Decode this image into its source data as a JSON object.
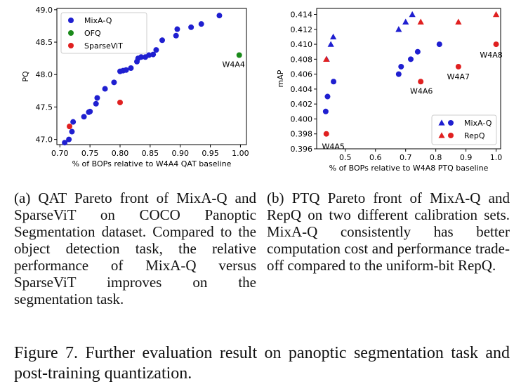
{
  "chart_data": [
    {
      "type": "scatter",
      "title": "",
      "xlabel": "% of BOPs relative to W4A4 QAT baseline",
      "ylabel": "PQ",
      "xlim": [
        0.695,
        1.01
      ],
      "ylim": [
        46.92,
        49.02
      ],
      "xticks": [
        "0.70",
        "0.75",
        "0.80",
        "0.85",
        "0.90",
        "0.95",
        "1.00"
      ],
      "xtick_values": [
        0.7,
        0.75,
        0.8,
        0.85,
        0.9,
        0.95,
        1.0
      ],
      "yticks": [
        "47.0",
        "47.5",
        "48.0",
        "48.5",
        "49.0"
      ],
      "ytick_values": [
        47.0,
        47.5,
        48.0,
        48.5,
        49.0
      ],
      "legend": {
        "placement": "top-left",
        "entries": [
          "MixA-Q",
          "OFQ",
          "SparseViT"
        ]
      },
      "series": [
        {
          "name": "MixA-Q",
          "color": "#1f1fd0",
          "marker": "circle",
          "points": [
            [
              0.708,
              46.95
            ],
            [
              0.715,
              47.0
            ],
            [
              0.72,
              47.12
            ],
            [
              0.722,
              47.27
            ],
            [
              0.74,
              47.35
            ],
            [
              0.748,
              47.42
            ],
            [
              0.75,
              47.43
            ],
            [
              0.76,
              47.55
            ],
            [
              0.762,
              47.64
            ],
            [
              0.775,
              47.78
            ],
            [
              0.79,
              47.88
            ],
            [
              0.8,
              48.05
            ],
            [
              0.805,
              48.06
            ],
            [
              0.81,
              48.07
            ],
            [
              0.818,
              48.1
            ],
            [
              0.828,
              48.2
            ],
            [
              0.83,
              48.25
            ],
            [
              0.835,
              48.27
            ],
            [
              0.842,
              48.27
            ],
            [
              0.848,
              48.3
            ],
            [
              0.855,
              48.31
            ],
            [
              0.86,
              48.38
            ],
            [
              0.87,
              48.53
            ],
            [
              0.893,
              48.6
            ],
            [
              0.895,
              48.7
            ],
            [
              0.918,
              48.73
            ],
            [
              0.935,
              48.78
            ],
            [
              0.965,
              48.91
            ]
          ]
        },
        {
          "name": "OFQ",
          "color": "#1a8a1a",
          "marker": "circle",
          "points": [
            [
              0.998,
              48.3
            ]
          ]
        },
        {
          "name": "SparseViT",
          "color": "#e02020",
          "marker": "circle",
          "points": [
            [
              0.716,
              47.2
            ],
            [
              0.8,
              47.57
            ]
          ]
        }
      ],
      "annotations": [
        {
          "text": "W4A4",
          "x": 0.998,
          "y": 48.3
        }
      ]
    },
    {
      "type": "scatter",
      "title": "",
      "xlabel": "% of BOPs relative to W4A8 PTQ baseline",
      "ylabel": "mAP",
      "xlim": [
        0.405,
        1.015
      ],
      "ylim": [
        0.396,
        0.4148
      ],
      "xticks": [
        "0.5",
        "0.6",
        "0.7",
        "0.8",
        "0.9",
        "1.0"
      ],
      "xtick_values": [
        0.5,
        0.6,
        0.7,
        0.8,
        0.9,
        1.0
      ],
      "yticks": [
        "0.396",
        "0.398",
        "0.400",
        "0.402",
        "0.404",
        "0.406",
        "0.408",
        "0.410",
        "0.412",
        "0.414"
      ],
      "ytick_values": [
        0.396,
        0.398,
        0.4,
        0.402,
        0.404,
        0.406,
        0.408,
        0.41,
        0.412,
        0.414
      ],
      "legend": {
        "placement": "bottom-right",
        "entries": [
          "MixA-Q",
          "RepQ"
        ]
      },
      "series": [
        {
          "name": "MixA-Q (triangle)",
          "color": "#1f1fd0",
          "marker": "triangle",
          "points": [
            [
              0.438,
              0.408
            ],
            [
              0.452,
              0.41
            ],
            [
              0.46,
              0.411
            ],
            [
              0.677,
              0.412
            ],
            [
              0.7,
              0.413
            ],
            [
              0.722,
              0.414
            ]
          ]
        },
        {
          "name": "MixA-Q (circle)",
          "color": "#1f1fd0",
          "marker": "circle",
          "points": [
            [
              0.435,
              0.401
            ],
            [
              0.441,
              0.403
            ],
            [
              0.461,
              0.405
            ],
            [
              0.677,
              0.406
            ],
            [
              0.685,
              0.407
            ],
            [
              0.717,
              0.408
            ],
            [
              0.74,
              0.409
            ],
            [
              0.812,
              0.41
            ]
          ]
        },
        {
          "name": "RepQ (triangle)",
          "color": "#e02020",
          "marker": "triangle",
          "points": [
            [
              0.437,
              0.408
            ],
            [
              0.75,
              0.413
            ],
            [
              0.875,
              0.413
            ],
            [
              1.0,
              0.414
            ]
          ]
        },
        {
          "name": "RepQ (circle)",
          "color": "#e02020",
          "marker": "circle",
          "points": [
            [
              0.437,
              0.398
            ],
            [
              0.75,
              0.405
            ],
            [
              0.875,
              0.407
            ],
            [
              1.0,
              0.41
            ]
          ]
        }
      ],
      "annotations": [
        {
          "text": "W4A5",
          "x": 0.437,
          "y": 0.398
        },
        {
          "text": "W4A6",
          "x": 0.75,
          "y": 0.405
        },
        {
          "text": "W4A7",
          "x": 0.875,
          "y": 0.407
        },
        {
          "text": "W4A8",
          "x": 1.0,
          "y": 0.41
        }
      ]
    }
  ],
  "captions": {
    "a": "(a) QAT Pareto front of MixA-Q and SparseViT on COCO Panoptic Segmentation dataset. Compared to the object detection task, the relative performance of MixA-Q versus SparseViT improves on the segmentation task.",
    "b": "(b) PTQ Pareto front of MixA-Q and RepQ on two different calibration sets. MixA-Q consistently has better computation cost and performance trade-off compared to the uniform-bit RepQ.",
    "figure": "Figure 7. Further evaluation result on panoptic segmentation task and post-training quantization."
  }
}
